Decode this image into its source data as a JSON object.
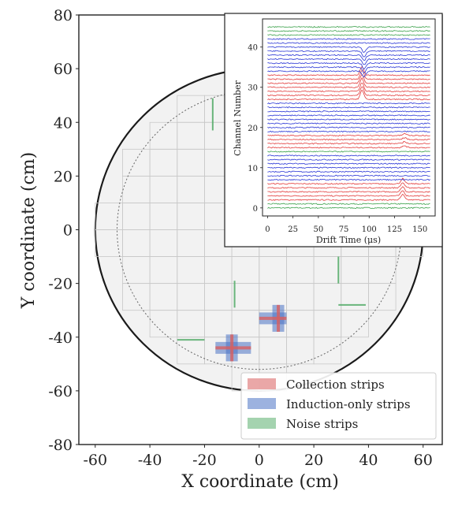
{
  "chart_data": {
    "type": "scatter",
    "main": {
      "xlabel": "X coordinate (cm)",
      "ylabel": "Y coordinate (cm)",
      "xlim": [
        -66,
        67
      ],
      "ylim": [
        -80,
        80
      ],
      "xticks": [
        "-60",
        "-40",
        "-20",
        "0",
        "20",
        "40",
        "60"
      ],
      "yticks": [
        "80",
        "60",
        "40",
        "20",
        "0",
        "-20",
        "-40",
        "-60",
        "-80"
      ],
      "detector_radius": 60,
      "fiducial_radius": 52,
      "pixel_grid_pitch": 10,
      "collection_strips": [
        {
          "orientation": "x",
          "x": [
            -16,
            -3
          ],
          "y": -44
        },
        {
          "orientation": "y",
          "x": -10,
          "y": [
            -49,
            -39
          ]
        },
        {
          "orientation": "x",
          "x": [
            0,
            10
          ],
          "y": -33
        },
        {
          "orientation": "y",
          "x": 7,
          "y": [
            -38,
            -28
          ]
        }
      ],
      "induction_strips": [
        {
          "orientation": "x",
          "x": [
            -16,
            -3
          ],
          "y": -44
        },
        {
          "orientation": "y",
          "x": -10,
          "y": [
            -49,
            -39
          ]
        },
        {
          "orientation": "x",
          "x": [
            0,
            10
          ],
          "y": -33
        },
        {
          "orientation": "y",
          "x": 7,
          "y": [
            -38,
            -28
          ]
        }
      ],
      "noise_strips": [
        {
          "orientation": "y",
          "x": -17,
          "y": [
            37,
            49
          ]
        },
        {
          "orientation": "y",
          "x": -9,
          "y": [
            -29,
            -19
          ]
        },
        {
          "orientation": "x",
          "x": [
            -30,
            -20
          ],
          "y": -41
        },
        {
          "orientation": "y",
          "x": 29,
          "y": [
            -20,
            -10
          ]
        },
        {
          "orientation": "x",
          "x": [
            29,
            39
          ],
          "y": -28
        }
      ],
      "legend": {
        "position": "lower-right",
        "entries": [
          {
            "label": "Collection strips",
            "color": "#d95f5f"
          },
          {
            "label": "Induction-only strips",
            "color": "#4a72c4"
          },
          {
            "label": "Noise strips",
            "color": "#5aae6e"
          }
        ]
      }
    },
    "inset": {
      "type": "line",
      "xlabel": "Drift Time (μs)",
      "ylabel": "Channel Number",
      "xlim": [
        -5,
        165
      ],
      "ylim": [
        -2,
        47
      ],
      "xticks": [
        "0",
        "25",
        "50",
        "75",
        "100",
        "125",
        "150"
      ],
      "yticks": [
        "0",
        "10",
        "20",
        "30",
        "40"
      ],
      "channel_count": 46,
      "channel_colors": [
        "g",
        "g",
        "r",
        "r",
        "r",
        "r",
        "r",
        "b",
        "b",
        "b",
        "b",
        "b",
        "b",
        "b",
        "g",
        "r",
        "r",
        "r",
        "r",
        "b",
        "b",
        "b",
        "b",
        "b",
        "b",
        "b",
        "b",
        "r",
        "r",
        "r",
        "r",
        "r",
        "r",
        "r",
        "b",
        "b",
        "b",
        "b",
        "b",
        "b",
        "b",
        "b",
        "b",
        "g",
        "g",
        "g"
      ],
      "pulses": [
        {
          "channel_range": [
            2,
            6
          ],
          "time": 133,
          "amplitude": 1.3
        },
        {
          "channel_range": [
            15,
            18
          ],
          "time": 135,
          "amplitude": 0.5
        },
        {
          "channel_range": [
            27,
            33
          ],
          "time": 93,
          "amplitude": 2.2
        },
        {
          "channel_range": [
            34,
            40
          ],
          "time": 95,
          "amplitude": -1.4
        }
      ],
      "colors": {
        "r": "#e23b3b",
        "b": "#2a36d6",
        "g": "#3aa04a"
      }
    }
  }
}
